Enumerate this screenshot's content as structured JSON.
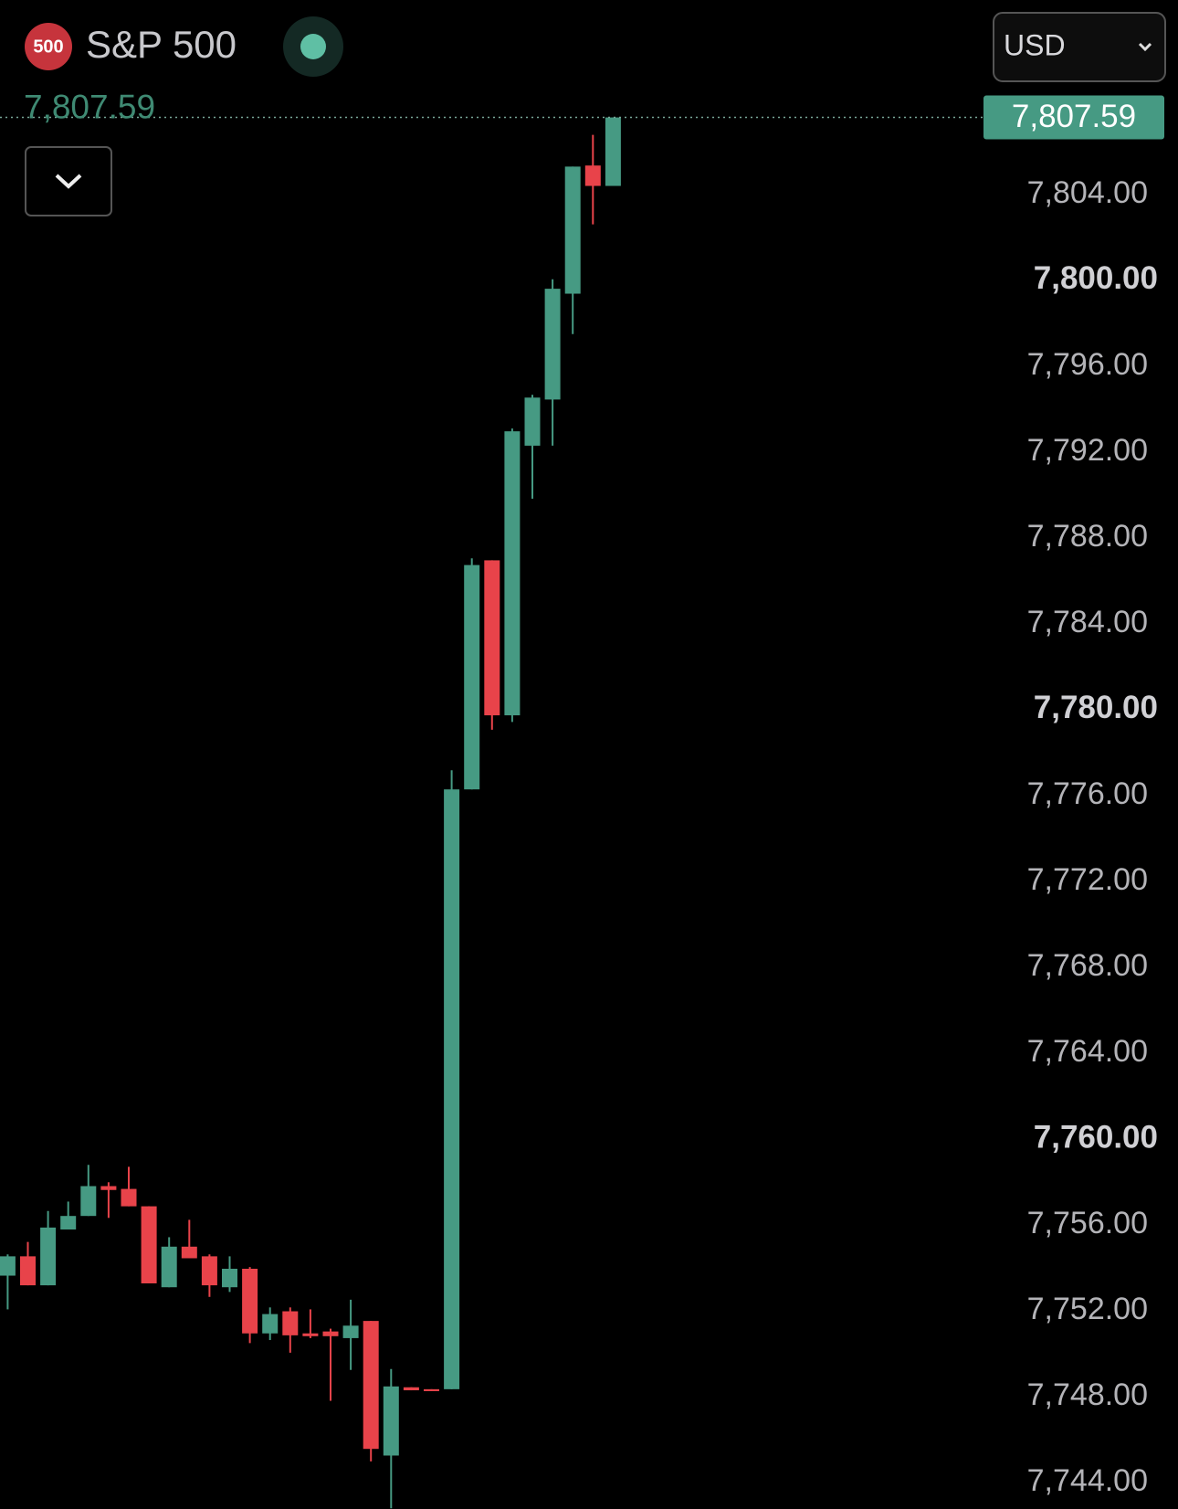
{
  "header": {
    "badge": "500",
    "name": "S&P 500",
    "currency": "USD"
  },
  "chart_data": {
    "type": "candlestick",
    "up_color": "#469a83",
    "down_color": "#e8434a",
    "last_price": {
      "value": 7807.59,
      "label": "7,807.59"
    },
    "open": [
      7753.64,
      7754.54,
      7753.19,
      7755.79,
      7756.42,
      7757.81,
      7757.68,
      7756.87,
      7753.1,
      7754.99,
      7754.54,
      7753.1,
      7753.96,
      7750.95,
      7751.98,
      7750.95,
      7751.04,
      7750.73,
      7751.53,
      7745.26,
      7748.44,
      7748.35,
      7748.35,
      7776.29,
      7786.96,
      7779.74,
      7792.3,
      7794.45,
      7799.38,
      7805.35,
      7804.4
    ],
    "high": [
      7754.63,
      7755.21,
      7756.65,
      7757.09,
      7758.8,
      7757.99,
      7758.71,
      7756.87,
      7755.43,
      7756.24,
      7754.63,
      7754.54,
      7754.04,
      7752.16,
      7752.16,
      7752.07,
      7751.17,
      7752.52,
      7751.53,
      7749.29,
      7748.44,
      7748.35,
      7777.18,
      7787.05,
      7786.96,
      7793.1,
      7794.67,
      7800.05,
      7805.3,
      7806.78,
      7807.59
    ],
    "low": [
      7752.07,
      7753.19,
      7753.19,
      7755.79,
      7756.42,
      7756.33,
      7756.87,
      7753.28,
      7753.1,
      7754.45,
      7752.65,
      7752.88,
      7750.5,
      7750.64,
      7750.05,
      7750.73,
      7747.81,
      7749.25,
      7744.99,
      7742.8,
      7748.3,
      7748.26,
      7748.35,
      7776.29,
      7779.07,
      7779.43,
      7789.83,
      7792.3,
      7797.5,
      7802.61,
      7804.4
    ],
    "close": [
      7754.54,
      7753.19,
      7755.88,
      7756.42,
      7757.81,
      7757.63,
      7756.87,
      7753.28,
      7754.99,
      7754.45,
      7753.19,
      7753.96,
      7750.95,
      7751.85,
      7750.86,
      7750.82,
      7750.82,
      7751.31,
      7745.57,
      7748.48,
      7748.3,
      7748.26,
      7776.29,
      7786.74,
      7779.74,
      7792.97,
      7794.54,
      7799.61,
      7805.3,
      7804.4,
      7807.59
    ],
    "ylim": [
      7742.77,
      7813.06
    ],
    "yticks": [
      {
        "value": 7804,
        "label": "7,804.00"
      },
      {
        "value": 7800,
        "label": "7,800.00"
      },
      {
        "value": 7796,
        "label": "7,796.00"
      },
      {
        "value": 7792,
        "label": "7,792.00"
      },
      {
        "value": 7788,
        "label": "7,788.00"
      },
      {
        "value": 7784,
        "label": "7,784.00"
      },
      {
        "value": 7780,
        "label": "7,780.00"
      },
      {
        "value": 7776,
        "label": "7,776.00"
      },
      {
        "value": 7772,
        "label": "7,772.00"
      },
      {
        "value": 7768,
        "label": "7,768.00"
      },
      {
        "value": 7764,
        "label": "7,764.00"
      },
      {
        "value": 7760,
        "label": "7,760.00"
      },
      {
        "value": 7756,
        "label": "7,756.00"
      },
      {
        "value": 7752,
        "label": "7,752.00"
      },
      {
        "value": 7748,
        "label": "7,748.00"
      },
      {
        "value": 7744,
        "label": "7,744.00"
      }
    ]
  }
}
